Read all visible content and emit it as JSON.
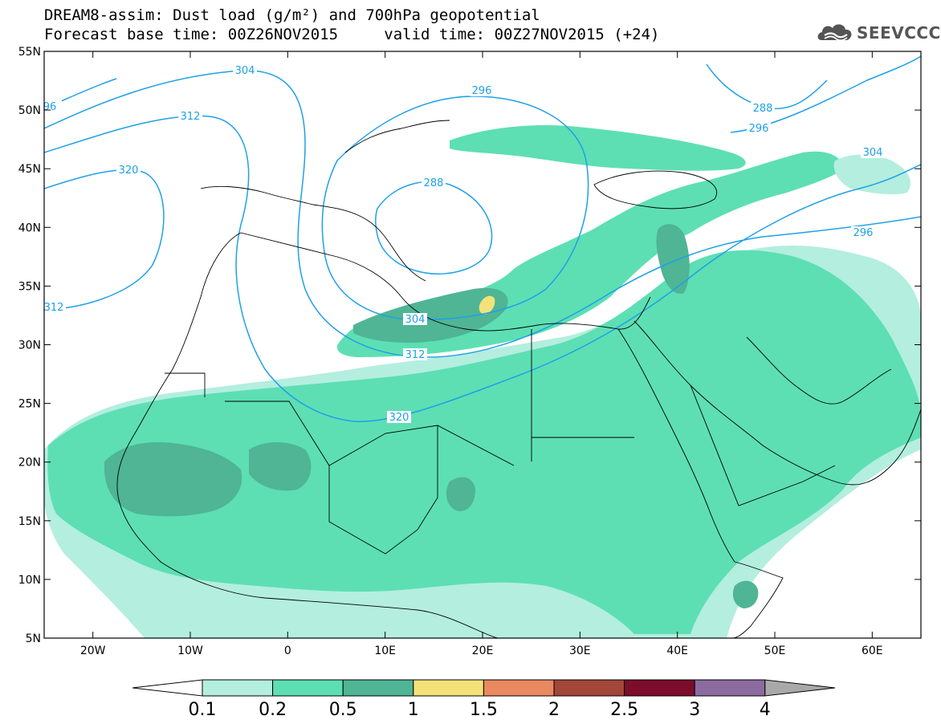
{
  "title": {
    "line1": "DREAM8-assim: Dust load (g/m²) and 700hPa geopotential",
    "base_label": "Forecast base time:",
    "base_time": "00Z26NOV2015",
    "valid_label": "valid time:",
    "valid_time": "00Z27NOV2015 (+24)"
  },
  "logo": {
    "text": "SEEVCCC",
    "icon": "cloud-logo-icon"
  },
  "map": {
    "lon_ticks": [
      "20W",
      "10W",
      "0",
      "10E",
      "20E",
      "30E",
      "40E",
      "50E",
      "60E"
    ],
    "lat_ticks": [
      "55N",
      "50N",
      "45N",
      "40N",
      "35N",
      "30N",
      "25N",
      "20N",
      "15N",
      "10N",
      "5N"
    ],
    "contour_labels": [
      "304",
      "312",
      "320",
      "96",
      "296",
      "288",
      "296",
      "304",
      "312",
      "320",
      "312",
      "296",
      "288",
      "304"
    ]
  },
  "colorbar": {
    "labels": [
      "0.1",
      "0.2",
      "0.5",
      "1",
      "1.5",
      "2",
      "2.5",
      "3",
      "4"
    ],
    "colors": [
      "#ffffff",
      "#b3eedf",
      "#5ddfb3",
      "#4fb594",
      "#f3e27a",
      "#e8895f",
      "#a2473a",
      "#7d0d2d",
      "#8c6ba0",
      "#a9a9a9"
    ]
  },
  "colors": {
    "contour": "#1fa0e8",
    "dust_low": "#b3eedf",
    "dust_mid": "#5ddfb3",
    "dust_high": "#4fb594",
    "dust_peak": "#f3e27a"
  }
}
